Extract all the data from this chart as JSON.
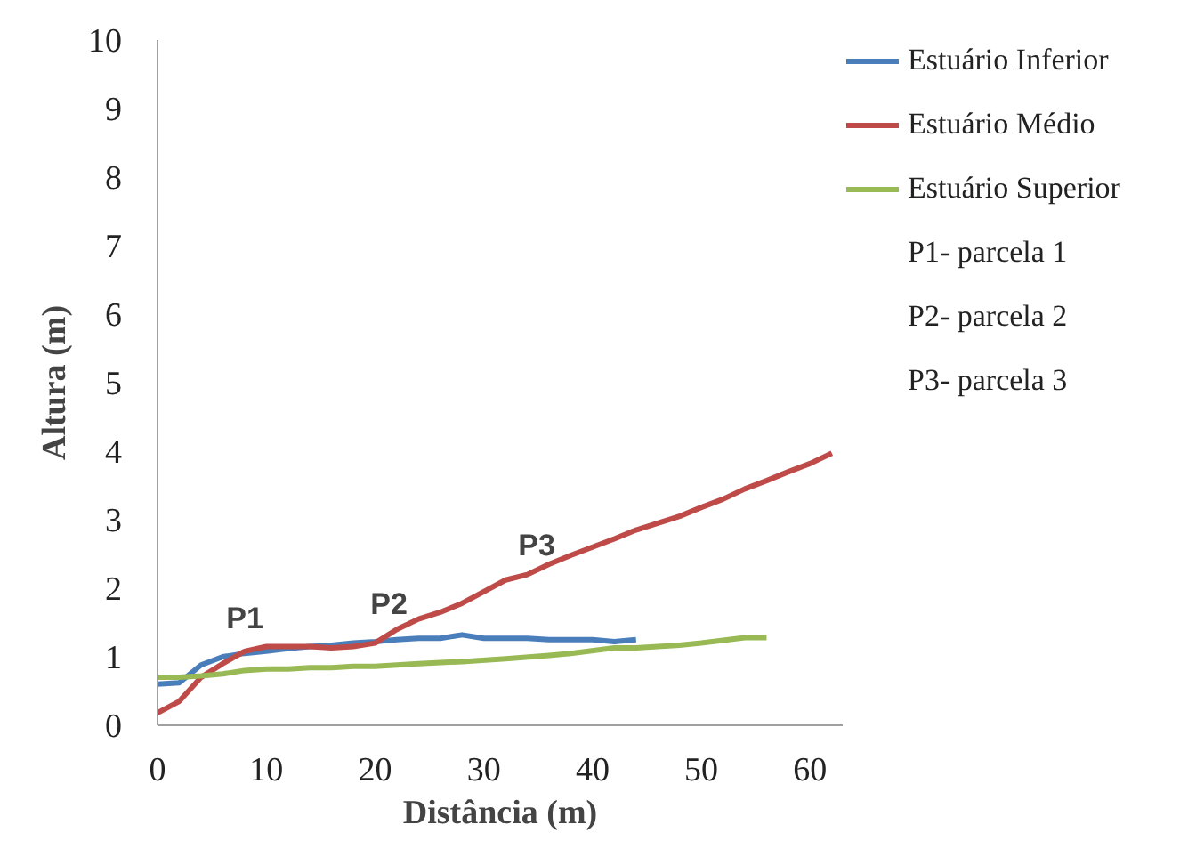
{
  "chart_data": {
    "type": "line",
    "xlabel": "Distância (m)",
    "ylabel": "Altura (m)",
    "xlim": [
      0,
      63
    ],
    "xticks": [
      0,
      10,
      20,
      30,
      40,
      50,
      60
    ],
    "ylim": [
      0,
      10
    ],
    "yticks": [
      0,
      1,
      2,
      3,
      4,
      5,
      6,
      7,
      8,
      9,
      10
    ],
    "grid": false,
    "legend": "top right",
    "marker": "none",
    "line_style": "solid",
    "series": [
      {
        "name": "Estuário Inferior",
        "color": "#4a7ebb",
        "x": [
          0,
          2,
          4,
          6,
          8,
          10,
          12,
          14,
          16,
          18,
          20,
          22,
          24,
          26,
          28,
          30,
          32,
          34,
          36,
          38,
          40,
          42,
          44
        ],
        "values": [
          0.6,
          0.62,
          0.88,
          1.0,
          1.05,
          1.08,
          1.12,
          1.15,
          1.17,
          1.2,
          1.22,
          1.25,
          1.27,
          1.27,
          1.32,
          1.27,
          1.27,
          1.27,
          1.25,
          1.25,
          1.25,
          1.22,
          1.25
        ]
      },
      {
        "name": "Estuário Médio",
        "color": "#be4b48",
        "x": [
          0,
          2,
          4,
          6,
          8,
          10,
          12,
          14,
          16,
          18,
          20,
          22,
          24,
          26,
          28,
          30,
          32,
          34,
          36,
          38,
          40,
          42,
          44,
          46,
          48,
          50,
          52,
          54,
          56,
          58,
          60,
          62
        ],
        "values": [
          0.18,
          0.35,
          0.7,
          0.9,
          1.08,
          1.15,
          1.15,
          1.15,
          1.13,
          1.15,
          1.2,
          1.4,
          1.55,
          1.65,
          1.78,
          1.95,
          2.12,
          2.2,
          2.35,
          2.48,
          2.6,
          2.72,
          2.85,
          2.95,
          3.05,
          3.18,
          3.3,
          3.45,
          3.57,
          3.7,
          3.82,
          3.97
        ]
      },
      {
        "name": "Estuário Superior",
        "color": "#98b954",
        "x": [
          0,
          2,
          4,
          6,
          8,
          10,
          12,
          14,
          16,
          18,
          20,
          24,
          28,
          32,
          36,
          38,
          42,
          44,
          48,
          50,
          54,
          56
        ],
        "values": [
          0.7,
          0.7,
          0.72,
          0.75,
          0.8,
          0.82,
          0.82,
          0.84,
          0.84,
          0.86,
          0.86,
          0.9,
          0.93,
          0.97,
          1.02,
          1.05,
          1.13,
          1.13,
          1.17,
          1.2,
          1.28,
          1.28
        ]
      }
    ],
    "annotations": [
      "P1",
      "P2",
      "P3",
      "P1- parcela 1",
      "P2- parcela 2",
      "P3- parcela 3"
    ]
  }
}
